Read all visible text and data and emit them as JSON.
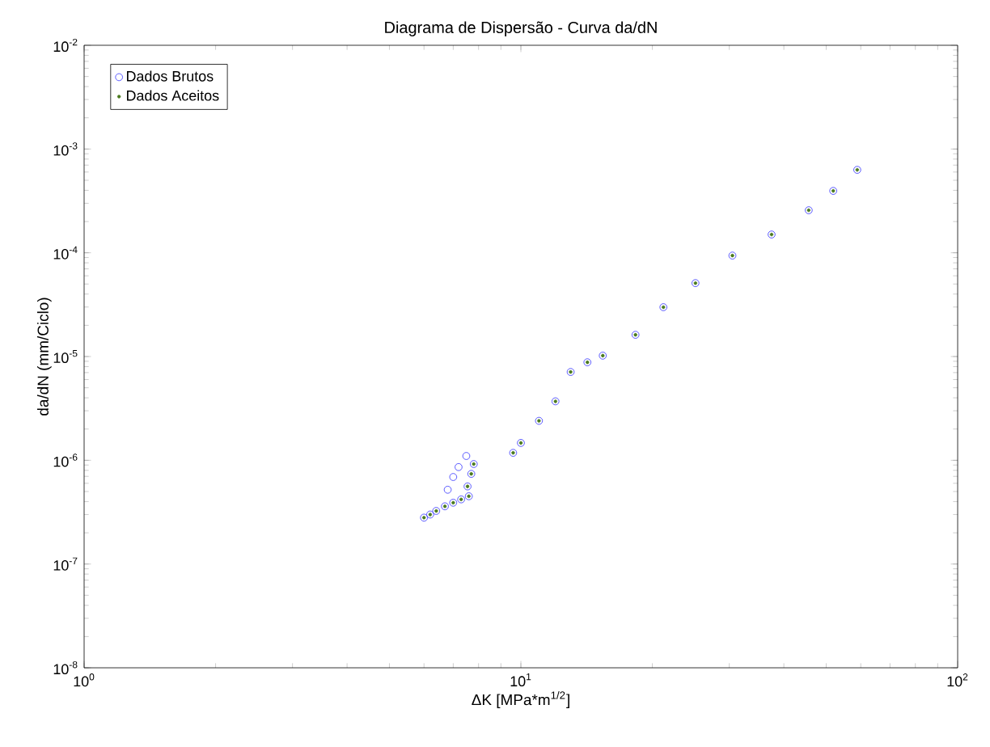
{
  "chart_data": {
    "type": "scatter",
    "title": "Diagrama de Dispersão - Curva da/dN",
    "xlabel": "ΔK [MPa*m$^{1/2}$]",
    "ylabel": "da/dN (mm/Ciclo)",
    "log": "xy",
    "legend": "top left",
    "grid": false,
    "xlim": [
      1,
      100
    ],
    "ylim": [
      1e-08,
      0.01
    ],
    "xticks": [
      {
        "value": 1,
        "label": "10$^{0}$"
      },
      {
        "value": 10,
        "label": "10$^{1}$"
      },
      {
        "value": 100,
        "label": "10$^{2}$"
      }
    ],
    "yticks": [
      {
        "value": 1e-08,
        "label": "10$^{-8}$"
      },
      {
        "value": 1e-07,
        "label": "10$^{-7}$"
      },
      {
        "value": 1e-06,
        "label": "10$^{-6}$"
      },
      {
        "value": 1e-05,
        "label": "10$^{-5}$"
      },
      {
        "value": 0.0001,
        "label": "10$^{-4}$"
      },
      {
        "value": 0.001,
        "label": "10$^{-3}$"
      },
      {
        "value": 0.01,
        "label": "10$^{-2}$"
      }
    ],
    "series": [
      {
        "name": "Dados Brutos",
        "color": "#3333ff",
        "marker": "circle",
        "x": [
          6.0,
          6.2,
          6.4,
          6.7,
          7.0,
          7.3,
          7.6,
          6.8,
          7.0,
          7.2,
          7.5,
          7.8,
          7.7,
          7.55,
          9.6,
          10.0,
          11.0,
          12.0,
          13.0,
          14.2,
          15.4,
          18.3,
          21.2,
          25.1,
          30.5,
          37.5,
          45.6,
          51.9,
          58.9
        ],
        "values": [
          2.8e-07,
          3e-07,
          3.25e-07,
          3.6e-07,
          3.9e-07,
          4.2e-07,
          4.5e-07,
          5.2e-07,
          6.9e-07,
          8.6e-07,
          1.1e-06,
          9.2e-07,
          7.4e-07,
          5.6e-07,
          1.18e-06,
          1.47e-06,
          2.4e-06,
          3.7e-06,
          7.1e-06,
          8.8e-06,
          1.02e-05,
          1.62e-05,
          2.99e-05,
          5.1e-05,
          9.4e-05,
          0.00015,
          0.000257,
          0.000395,
          0.00063
        ]
      },
      {
        "name": "Dados Aceitos",
        "color": "#4a7a1e",
        "marker": "circle",
        "x": [
          6.0,
          6.2,
          6.4,
          6.7,
          7.0,
          7.3,
          7.6,
          7.8,
          7.7,
          7.55,
          9.6,
          10.0,
          11.0,
          12.0,
          13.0,
          14.2,
          15.4,
          18.3,
          21.2,
          25.1,
          30.5,
          37.5,
          45.6,
          51.9,
          58.9
        ],
        "values": [
          2.8e-07,
          3e-07,
          3.25e-07,
          3.6e-07,
          3.9e-07,
          4.2e-07,
          4.5e-07,
          9.2e-07,
          7.4e-07,
          5.6e-07,
          1.18e-06,
          1.47e-06,
          2.4e-06,
          3.7e-06,
          7.1e-06,
          8.8e-06,
          1.02e-05,
          1.62e-05,
          2.99e-05,
          5.1e-05,
          9.4e-05,
          0.00015,
          0.000257,
          0.000395,
          0.00063
        ]
      }
    ]
  }
}
